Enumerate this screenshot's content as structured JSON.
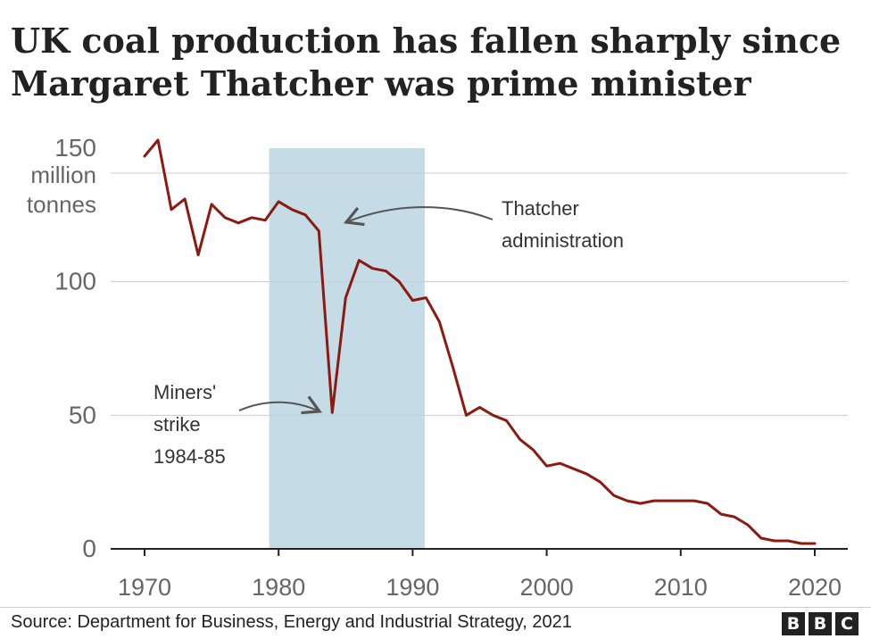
{
  "title_lines": [
    "UK coal production has fallen sharply since",
    "Margaret Thatcher was prime minister"
  ],
  "source": "Source: Department for Business, Energy and Industrial Strategy, 2021",
  "logo": [
    "B",
    "B",
    "C"
  ],
  "colors": {
    "line": "#8b1a12",
    "shade": "#c5dbe6",
    "grid": "#cccccc",
    "axis": "#222222",
    "tick": "#666666"
  },
  "annotations": {
    "thatcher": [
      "Thatcher",
      "administration"
    ],
    "miners": [
      "Miners'",
      "strike",
      "1984-85"
    ]
  },
  "chart_data": {
    "type": "line",
    "title": "UK coal production has fallen sharply since Margaret Thatcher was prime minister",
    "ylabel": "",
    "ylim": [
      0,
      150
    ],
    "xlim": [
      1970,
      2020
    ],
    "y_ticks": [
      0,
      50,
      100,
      150
    ],
    "y_tick_labels": [
      "0",
      "50",
      "100",
      "150"
    ],
    "y_unit_label": [
      "million",
      "tonnes"
    ],
    "x_ticks": [
      1970,
      1980,
      1990,
      2000,
      2010,
      2020
    ],
    "x_tick_labels": [
      "1970",
      "1980",
      "1990",
      "2000",
      "2010",
      "2020"
    ],
    "grid": true,
    "shaded_region": {
      "from": 1979.3,
      "to": 1990.9,
      "label": "Thatcher administration"
    },
    "series": [
      {
        "x": [
          1970,
          1971,
          1972,
          1973,
          1974,
          1975,
          1976,
          1977,
          1978,
          1979,
          1980,
          1981,
          1982,
          1983,
          1984,
          1985,
          1986,
          1987,
          1988,
          1989,
          1990,
          1991,
          1992,
          1993,
          1994,
          1995,
          1996,
          1997,
          1998,
          1999,
          2000,
          2001,
          2002,
          2003,
          2004,
          2005,
          2006,
          2007,
          2008,
          2009,
          2010,
          2011,
          2012,
          2013,
          2014,
          2015,
          2016,
          2017,
          2018,
          2019,
          2020
        ],
        "values": [
          147,
          153,
          127,
          131,
          110,
          129,
          124,
          122,
          124,
          123,
          130,
          127,
          125,
          119,
          51,
          94,
          108,
          105,
          104,
          100,
          93,
          94,
          85,
          68,
          50,
          53,
          50,
          48,
          41,
          37,
          31,
          32,
          30,
          28,
          25,
          20,
          18,
          17,
          18,
          18,
          18,
          18,
          17,
          13,
          12,
          9,
          4,
          3,
          3,
          2,
          2
        ]
      }
    ]
  }
}
